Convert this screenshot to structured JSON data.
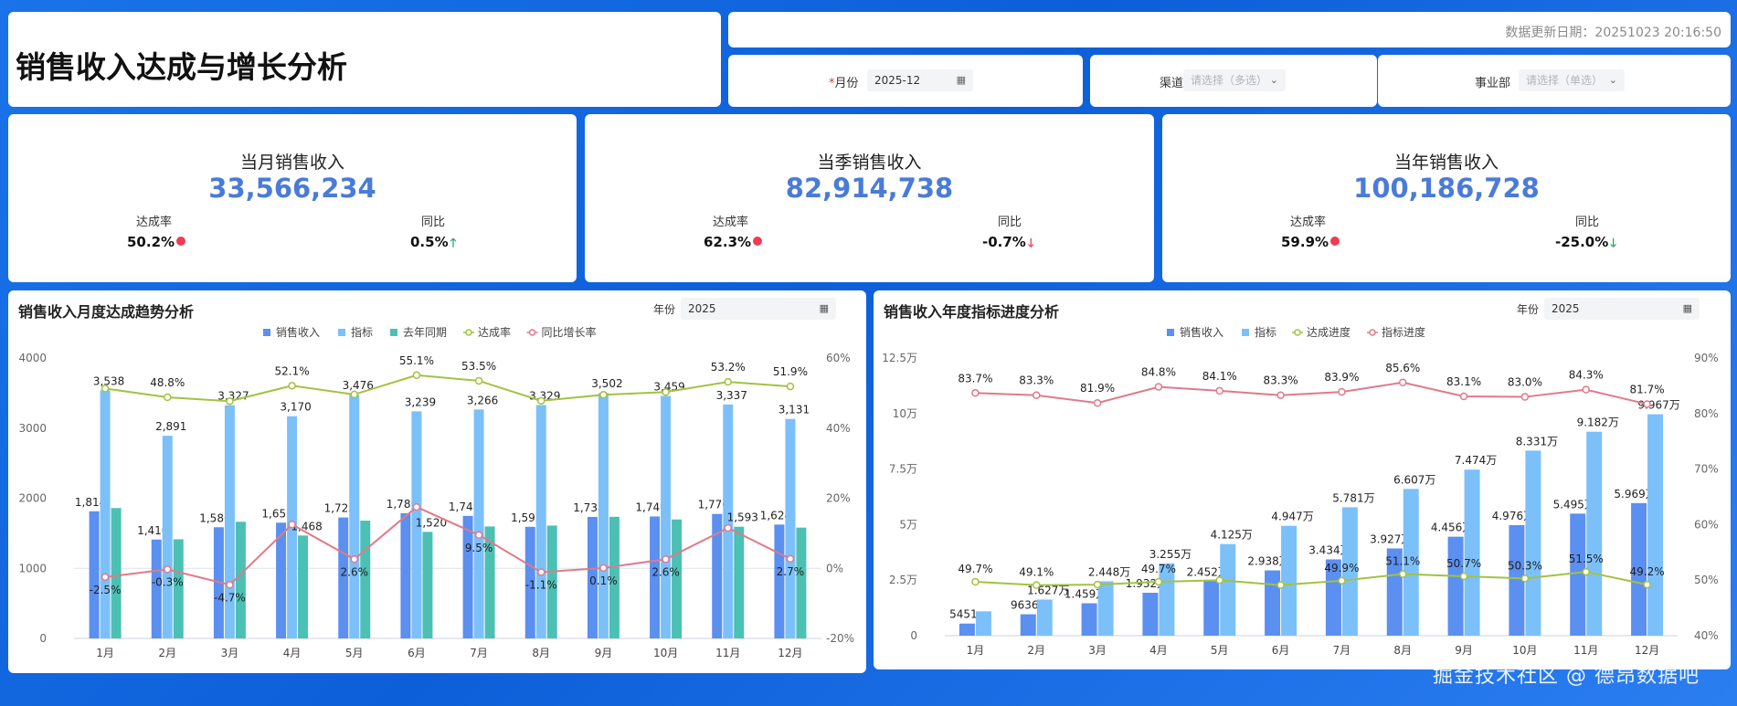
{
  "header": {
    "title": "销售收入达成与增长分析",
    "update_text": "数据更新日期：20251023 20:16:50"
  },
  "filters": {
    "month_label": "月份",
    "month_value": "2025-12",
    "channel_label": "渠道",
    "channel_placeholder": "请选择（多选）",
    "division_label": "事业部",
    "division_placeholder": "请选择（单选）"
  },
  "kpis": [
    {
      "title": "当月销售收入",
      "value": "33,566,234",
      "rate_label": "达成率",
      "rate": "50.2%",
      "yoy_label": "同比",
      "yoy": "0.5%",
      "yoy_dir": "up"
    },
    {
      "title": "当季销售收入",
      "value": "82,914,738",
      "rate_label": "达成率",
      "rate": "62.3%",
      "yoy_label": "同比",
      "yoy": "-0.7%",
      "yoy_dir": "down"
    },
    {
      "title": "当年销售收入",
      "value": "100,186,728",
      "rate_label": "达成率",
      "rate": "59.9%",
      "yoy_label": "同比",
      "yoy": "-25.0%",
      "yoy_dir": "down"
    }
  ],
  "colors": {
    "actual": "#5b8ff0",
    "target": "#7cc0fa",
    "last_year": "#4cc0b3",
    "rate": "#a3c240",
    "growth": "#e07a8a"
  },
  "chart_data": [
    {
      "type": "bar",
      "title": "销售收入月度达成趋势分析",
      "year_label": "年份",
      "year_value": "2025",
      "categories": [
        "1月",
        "2月",
        "3月",
        "4月",
        "5月",
        "6月",
        "7月",
        "8月",
        "9月",
        "10月",
        "11月",
        "12月"
      ],
      "series": [
        {
          "name": "销售收入",
          "kind": "bar",
          "values": [
            1814,
            1410,
            1586,
            1651,
            1725,
            1786,
            1748,
            1592,
            1733,
            1740,
            1776,
            1624
          ],
          "labels": [
            "1,814",
            "1,410",
            "1,586",
            "1,651",
            "1,725",
            "1,786",
            "1,748",
            "1,592",
            "1,733",
            "1,740",
            "1,776",
            "1,624"
          ]
        },
        {
          "name": "指标",
          "kind": "bar",
          "values": [
            3538,
            2891,
            3327,
            3170,
            3476,
            3239,
            3266,
            3329,
            3502,
            3459,
            3337,
            3131
          ],
          "labels": [
            "3,538",
            "2,891",
            "3,327",
            "3,170",
            "3,476",
            "3,239",
            "3,266",
            "3,329",
            "3,502",
            "3,459",
            "3,337",
            "3,131"
          ]
        },
        {
          "name": "去年同期",
          "kind": "bar",
          "values": [
            1860,
            1414,
            1664,
            1468,
            1680,
            1520,
            1597,
            1610,
            1735,
            1697,
            1593,
            1581
          ],
          "labels": [
            "",
            "",
            "",
            "1,468",
            "",
            "1,520",
            "",
            "",
            "",
            "",
            "1,593",
            ""
          ]
        },
        {
          "name": "达成率",
          "kind": "line",
          "axis": "right",
          "values": [
            51.3,
            48.8,
            47.7,
            52.1,
            49.6,
            55.1,
            53.5,
            47.8,
            49.5,
            50.3,
            53.2,
            51.9
          ],
          "labels": [
            "",
            "48.8%",
            "",
            "52.1%",
            "",
            "55.1%",
            "53.5%",
            "",
            "",
            "",
            "53.2%",
            "51.9%"
          ]
        },
        {
          "name": "同比增长率",
          "kind": "line",
          "axis": "right",
          "values": [
            -2.5,
            -0.3,
            -4.7,
            12.5,
            2.6,
            17.5,
            9.5,
            -1.1,
            0.1,
            2.6,
            11.5,
            2.7
          ],
          "labels": [
            "-2.5%",
            "-0.3%",
            "-4.7%",
            "",
            "2.6%",
            "",
            "9.5%",
            "-1.1%",
            "0.1%",
            "2.6%",
            "",
            "2.7%"
          ]
        }
      ],
      "yleft_ticks": [
        "4000",
        "3000",
        "2000",
        "1000",
        "0"
      ],
      "yleft_range": [
        0,
        4000
      ],
      "yright_ticks": [
        "60%",
        "40%",
        "20%",
        "0%",
        "-20%"
      ],
      "yright_range": [
        -20,
        60
      ]
    },
    {
      "type": "bar",
      "title": "销售收入年度指标进度分析",
      "year_label": "年份",
      "year_value": "2025",
      "categories": [
        "1月",
        "2月",
        "3月",
        "4月",
        "5月",
        "6月",
        "7月",
        "8月",
        "9月",
        "10月",
        "11月",
        "12月"
      ],
      "series": [
        {
          "name": "销售收入",
          "kind": "bar",
          "values": [
            5451,
            9636,
            14590,
            19320,
            24520,
            29380,
            34340,
            39270,
            44560,
            49760,
            54950,
            59690
          ],
          "labels": [
            "5451",
            "9636",
            "1.459万",
            "1.932万",
            "2.452万",
            "2.938万",
            "3.434万",
            "3.927万",
            "4.456万",
            "4.976万",
            "5.495万",
            "5.969万"
          ]
        },
        {
          "name": "指标",
          "kind": "bar",
          "values": [
            10960,
            16270,
            24480,
            32550,
            41250,
            49470,
            57810,
            66070,
            74740,
            83310,
            91820,
            99670
          ],
          "labels": [
            "",
            "1.627万",
            "2.448万",
            "3.255万",
            "4.125万",
            "4.947万",
            "5.781万",
            "6.607万",
            "7.474万",
            "8.331万",
            "9.182万",
            "9.967万"
          ]
        },
        {
          "name": "达成进度",
          "kind": "line",
          "axis": "right",
          "values": [
            49.7,
            49.1,
            49.2,
            49.7,
            50.0,
            49.1,
            49.9,
            51.1,
            50.7,
            50.3,
            51.5,
            49.2
          ],
          "labels": [
            "49.7%",
            "49.1%",
            "",
            "49.7%",
            "",
            "",
            "49.9%",
            "51.1%",
            "50.7%",
            "50.3%",
            "51.5%",
            "49.2%"
          ]
        },
        {
          "name": "指标进度",
          "kind": "line",
          "axis": "right",
          "values": [
            83.7,
            83.3,
            81.9,
            84.8,
            84.1,
            83.3,
            83.9,
            85.6,
            83.1,
            83.0,
            84.3,
            81.7
          ],
          "labels": [
            "83.7%",
            "83.3%",
            "81.9%",
            "84.8%",
            "84.1%",
            "83.3%",
            "83.9%",
            "85.6%",
            "83.1%",
            "83.0%",
            "84.3%",
            "81.7%"
          ]
        }
      ],
      "yleft_ticks": [
        "12.5万",
        "10万",
        "7.5万",
        "5万",
        "2.5万",
        "0"
      ],
      "yleft_range": [
        0,
        125000
      ],
      "yright_ticks": [
        "90%",
        "80%",
        "70%",
        "60%",
        "50%",
        "40%"
      ],
      "yright_range": [
        40,
        90
      ]
    }
  ],
  "watermark": "掘金技术社区 @ 德昂数据吧"
}
